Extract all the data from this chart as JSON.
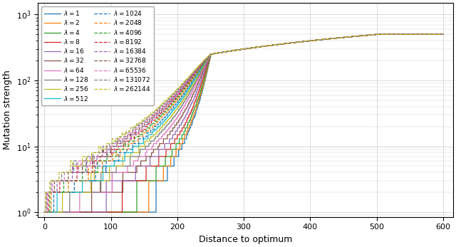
{
  "xlabel": "Distance to optimum",
  "ylabel": "Mutation strength",
  "n": 500,
  "x_max": 600,
  "lambdas_solid": [
    1,
    2,
    4,
    8,
    16,
    32,
    64,
    128,
    256,
    512
  ],
  "lambdas_dashed": [
    1024,
    2048,
    4096,
    8192,
    16384,
    32768,
    65536,
    131072,
    262144
  ],
  "colors": {
    "1": "#1f77b4",
    "2": "#ff7f0e",
    "4": "#2ca02c",
    "8": "#d62728",
    "16": "#9467bd",
    "32": "#8c564b",
    "64": "#e377c2",
    "128": "#7f7f7f",
    "256": "#bcbd22",
    "512": "#17becf",
    "1024": "#1f77b4",
    "2048": "#ff7f0e",
    "4096": "#2ca02c",
    "8192": "#d62728",
    "16384": "#9467bd",
    "32768": "#8c564b",
    "65536": "#e377c2",
    "131072": "#7f7f7f",
    "262144": "#bcbd22"
  },
  "xlim": [
    -10,
    615
  ],
  "ylim": [
    0.85,
    1500
  ],
  "grid_color": "#cccccc",
  "linewidth": 0.9
}
